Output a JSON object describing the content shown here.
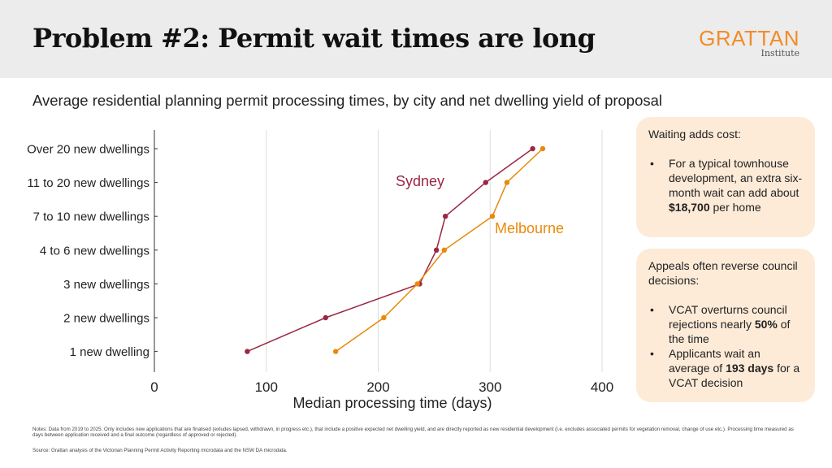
{
  "header": {
    "title": "Problem #2: Permit wait times are long",
    "logo_main": "GRATTAN",
    "logo_sub": "Institute"
  },
  "subtitle": "Average residential planning permit processing times, by city and net dwelling yield of proposal",
  "colors": {
    "sydney": "#9b2743",
    "melbourne": "#e8890c",
    "header_bg": "#ececec",
    "box_bg": "#fdebd8",
    "accent": "#f28c28"
  },
  "chart_data": {
    "type": "line",
    "orientation": "horizontal",
    "categories": [
      "1 new dwelling",
      "2 new dwellings",
      "3 new dwellings",
      "4 to 6 new dwellings",
      "7 to 10 new dwellings",
      "11 to 20 new dwellings",
      "Over 20 new dwellings"
    ],
    "series": [
      {
        "name": "Sydney",
        "values": [
          83,
          153,
          237,
          252,
          260,
          296,
          338
        ]
      },
      {
        "name": "Melbourne",
        "values": [
          162,
          205,
          235,
          259,
          302,
          315,
          347
        ]
      }
    ],
    "xlabel": "Median processing time (days)",
    "xlim": [
      0,
      400
    ],
    "xticks": [
      0,
      100,
      200,
      300,
      400
    ],
    "grid": "vertical",
    "legend": "inline labels"
  },
  "callouts": [
    {
      "heading": "Waiting adds cost:",
      "bullets": [
        {
          "pre": "For a typical townhouse development, an extra six-month wait can add about ",
          "bold": "$18,700",
          "post": " per home"
        }
      ]
    },
    {
      "heading": "Appeals often reverse council decisions:",
      "bullets": [
        {
          "pre": "VCAT overturns council rejections nearly ",
          "bold": "50%",
          "post": " of the time"
        },
        {
          "pre": "Applicants wait an average of ",
          "bold": "193 days",
          "post": " for a VCAT decision"
        }
      ]
    }
  ],
  "notes": "Notes: Data from 2019 to 2025. Only includes new applications that are finalised (exludes lapsed, withdrawn, in progress etc.), that include a positive expected net dwelling yield, and are directly reported as new residential development (i.e. excludes associated permits for vegetation removal, change of use etc.). Processing time measured as days between application received and a final outcome (regardless of approved or rejected).",
  "source": "Source: Grattan analysis of the Victorian Planning Permit Activity Reporting microdata and the NSW DA microdata."
}
